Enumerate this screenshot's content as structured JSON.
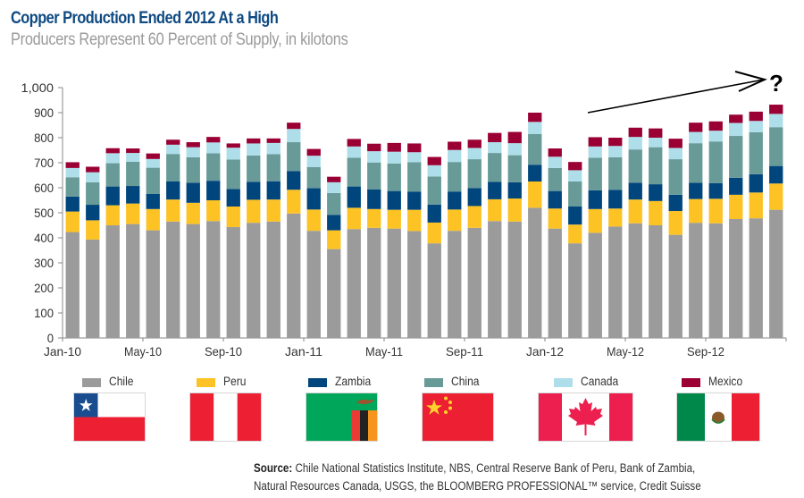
{
  "header": {
    "title": "Copper Production Ended 2012 At a High",
    "subtitle": "Producers Represent 60 Percent of Supply, in kilotons"
  },
  "chart_data": {
    "type": "bar",
    "stacked": true,
    "title": "Copper Production Ended 2012 At a High",
    "subtitle": "Producers Represent 60 Percent of Supply, in kilotons",
    "xlabel": "",
    "ylabel": "",
    "ylim": [
      0,
      1000
    ],
    "yticks": [
      0,
      100,
      200,
      300,
      400,
      500,
      600,
      700,
      800,
      900,
      1000
    ],
    "ytick_labels": [
      "0",
      "100",
      "200",
      "300",
      "400",
      "500",
      "600",
      "700",
      "800",
      "900",
      "1,000"
    ],
    "grid": false,
    "categories": [
      "Jan-10",
      "Feb-10",
      "Mar-10",
      "Apr-10",
      "May-10",
      "Jun-10",
      "Jul-10",
      "Aug-10",
      "Sep-10",
      "Oct-10",
      "Nov-10",
      "Dec-10",
      "Jan-11",
      "Feb-11",
      "Mar-11",
      "Apr-11",
      "May-11",
      "Jun-11",
      "Jul-11",
      "Aug-11",
      "Sep-11",
      "Oct-11",
      "Nov-11",
      "Dec-11",
      "Jan-12",
      "Feb-12",
      "Mar-12",
      "Apr-12",
      "May-12",
      "Jun-12",
      "Jul-12",
      "Aug-12",
      "Sep-12",
      "Oct-12",
      "Nov-12",
      "Dec-12"
    ],
    "xtick_labels": [
      {
        "index": 0,
        "label": "Jan-10"
      },
      {
        "index": 4,
        "label": "May-10"
      },
      {
        "index": 8,
        "label": "Sep-10"
      },
      {
        "index": 12,
        "label": "Jan-11"
      },
      {
        "index": 16,
        "label": "May-11"
      },
      {
        "index": 20,
        "label": "Sep-11"
      },
      {
        "index": 24,
        "label": "Jan-12"
      },
      {
        "index": 28,
        "label": "May-12"
      },
      {
        "index": 32,
        "label": "Sep-12"
      }
    ],
    "series": [
      {
        "name": "Chile",
        "color": "#9b9b9b",
        "values": [
          423,
          393,
          450,
          455,
          430,
          465,
          455,
          467,
          443,
          460,
          465,
          497,
          428,
          355,
          435,
          440,
          437,
          427,
          378,
          428,
          440,
          467,
          465,
          520,
          437,
          378,
          420,
          445,
          458,
          450,
          412,
          460,
          458,
          475,
          478,
          512
        ]
      },
      {
        "name": "Peru",
        "color": "#fdc325",
        "values": [
          82,
          77,
          80,
          82,
          85,
          88,
          85,
          83,
          82,
          92,
          88,
          95,
          85,
          75,
          85,
          75,
          75,
          85,
          83,
          85,
          87,
          87,
          92,
          105,
          80,
          75,
          95,
          72,
          95,
          97,
          95,
          95,
          98,
          97,
          103,
          105
        ]
      },
      {
        "name": "Zambia",
        "color": "#00457c",
        "values": [
          60,
          62,
          75,
          70,
          60,
          72,
          80,
          78,
          70,
          72,
          73,
          75,
          85,
          62,
          85,
          78,
          75,
          72,
          72,
          72,
          72,
          70,
          65,
          67,
          70,
          72,
          75,
          75,
          67,
          67,
          65,
          65,
          62,
          68,
          73,
          70
        ]
      },
      {
        "name": "China",
        "color": "#689a98",
        "values": [
          77,
          90,
          93,
          97,
          105,
          110,
          102,
          110,
          118,
          105,
          108,
          115,
          85,
          87,
          115,
          108,
          110,
          118,
          112,
          118,
          115,
          115,
          108,
          123,
          92,
          100,
          130,
          130,
          133,
          148,
          142,
          158,
          167,
          167,
          168,
          155
        ]
      },
      {
        "name": "Canada",
        "color": "#aedeea",
        "values": [
          37,
          40,
          40,
          35,
          35,
          37,
          40,
          43,
          47,
          48,
          45,
          53,
          45,
          43,
          45,
          45,
          47,
          40,
          45,
          48,
          45,
          43,
          48,
          48,
          45,
          45,
          45,
          45,
          50,
          38,
          45,
          45,
          43,
          52,
          45,
          53
        ]
      },
      {
        "name": "Mexico",
        "color": "#9a0033",
        "values": [
          23,
          22,
          20,
          18,
          22,
          20,
          20,
          22,
          17,
          20,
          18,
          25,
          27,
          22,
          30,
          30,
          35,
          35,
          33,
          33,
          33,
          37,
          45,
          37,
          33,
          33,
          37,
          33,
          37,
          37,
          37,
          37,
          37,
          33,
          37,
          37
        ]
      }
    ],
    "legend": [
      "Chile",
      "Peru",
      "Zambia",
      "China",
      "Canada",
      "Mexico"
    ],
    "legend_position": "bottom",
    "annotation": {
      "type": "arrow",
      "label": "?",
      "from_index": 27,
      "to_index": 35,
      "meaning": "rising trend"
    }
  },
  "legend_flags": [
    {
      "country": "Chile",
      "flag_icon": "chile-flag-icon"
    },
    {
      "country": "Peru",
      "flag_icon": "peru-flag-icon"
    },
    {
      "country": "Zambia",
      "flag_icon": "zambia-flag-icon"
    },
    {
      "country": "China",
      "flag_icon": "china-flag-icon"
    },
    {
      "country": "Canada",
      "flag_icon": "canada-flag-icon"
    },
    {
      "country": "Mexico",
      "flag_icon": "mexico-flag-icon"
    }
  ],
  "footer": {
    "source_label": "Source:",
    "source_text_line1": " Chile National Statistics Institute, NBS, Central Reserve Bank of Peru, Bank of Zambia,",
    "source_text_line2": "Natural Resources Canada, USGS, the BLOOMBERG PROFESSIONAL™ service, Credit Suisse"
  },
  "colors": {
    "title": "#0e4a82",
    "subtitle": "#9a9a9a",
    "axis": "#888888"
  }
}
